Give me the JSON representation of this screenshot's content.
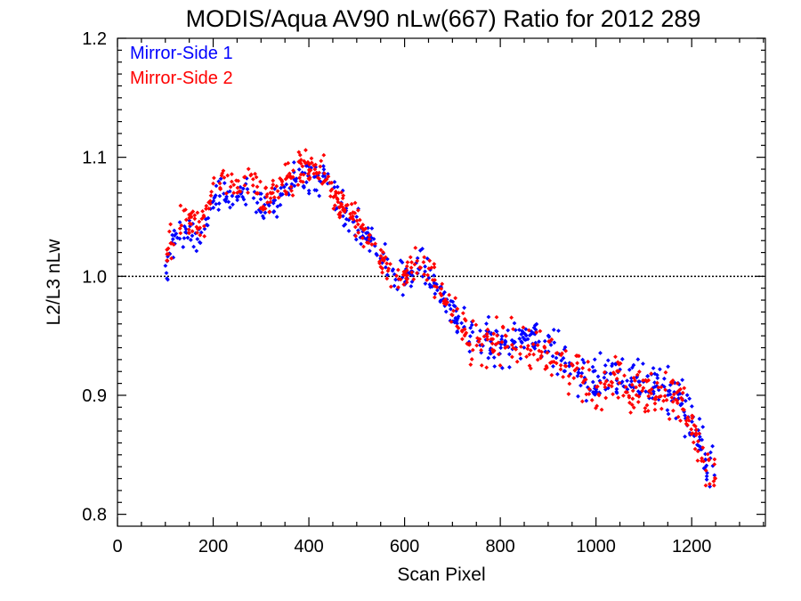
{
  "chart_data": {
    "type": "scatter",
    "title": "MODIS/Aqua AV90 nLw(667) Ratio for 2012 289",
    "xlabel": "Scan Pixel",
    "ylabel": "L2/L3 nLw",
    "xlim": [
      0,
      1354
    ],
    "ylim": [
      0.79,
      1.2
    ],
    "xticks": [
      "0",
      "200",
      "400",
      "600",
      "800",
      "1000",
      "1200"
    ],
    "xtick_values": [
      0,
      200,
      400,
      600,
      800,
      1000,
      1200
    ],
    "yticks": [
      "0.8",
      "0.9",
      "1.0",
      "1.1",
      "1.2"
    ],
    "ytick_values": [
      0.8,
      0.9,
      1.0,
      1.1,
      1.2
    ],
    "reference_line": {
      "y": 1.0,
      "style": "dotted"
    },
    "grid": false,
    "legend_position": "top-left",
    "series": [
      {
        "name": "Mirror-Side 1",
        "color": "#0000ff",
        "trend": [
          [
            100,
            1.005
          ],
          [
            120,
            1.03
          ],
          [
            140,
            1.04
          ],
          [
            160,
            1.035
          ],
          [
            180,
            1.04
          ],
          [
            200,
            1.06
          ],
          [
            220,
            1.07
          ],
          [
            250,
            1.065
          ],
          [
            280,
            1.07
          ],
          [
            300,
            1.058
          ],
          [
            320,
            1.055
          ],
          [
            350,
            1.07
          ],
          [
            380,
            1.085
          ],
          [
            400,
            1.085
          ],
          [
            420,
            1.082
          ],
          [
            440,
            1.075
          ],
          [
            460,
            1.065
          ],
          [
            480,
            1.05
          ],
          [
            500,
            1.04
          ],
          [
            520,
            1.035
          ],
          [
            540,
            1.025
          ],
          [
            560,
            1.01
          ],
          [
            580,
            0.995
          ],
          [
            600,
            0.998
          ],
          [
            620,
            1.005
          ],
          [
            640,
            1.008
          ],
          [
            660,
            0.995
          ],
          [
            680,
            0.98
          ],
          [
            700,
            0.97
          ],
          [
            720,
            0.958
          ],
          [
            740,
            0.95
          ],
          [
            760,
            0.945
          ],
          [
            780,
            0.945
          ],
          [
            800,
            0.945
          ],
          [
            840,
            0.945
          ],
          [
            880,
            0.945
          ],
          [
            920,
            0.935
          ],
          [
            960,
            0.925
          ],
          [
            1000,
            0.91
          ],
          [
            1040,
            0.92
          ],
          [
            1080,
            0.915
          ],
          [
            1100,
            0.915
          ],
          [
            1140,
            0.91
          ],
          [
            1160,
            0.905
          ],
          [
            1180,
            0.895
          ],
          [
            1200,
            0.88
          ],
          [
            1220,
            0.855
          ],
          [
            1235,
            0.835
          ],
          [
            1250,
            0.845
          ]
        ],
        "spread": 0.011,
        "n_points": 600
      },
      {
        "name": "Mirror-Side 2",
        "color": "#ff0000",
        "trend": [
          [
            100,
            1.015
          ],
          [
            120,
            1.04
          ],
          [
            140,
            1.045
          ],
          [
            160,
            1.045
          ],
          [
            180,
            1.045
          ],
          [
            200,
            1.075
          ],
          [
            220,
            1.085
          ],
          [
            250,
            1.075
          ],
          [
            280,
            1.08
          ],
          [
            300,
            1.065
          ],
          [
            320,
            1.065
          ],
          [
            350,
            1.08
          ],
          [
            380,
            1.09
          ],
          [
            400,
            1.092
          ],
          [
            420,
            1.088
          ],
          [
            440,
            1.078
          ],
          [
            460,
            1.065
          ],
          [
            480,
            1.055
          ],
          [
            500,
            1.045
          ],
          [
            520,
            1.035
          ],
          [
            540,
            1.025
          ],
          [
            560,
            1.01
          ],
          [
            580,
            0.995
          ],
          [
            600,
            1.0
          ],
          [
            620,
            1.01
          ],
          [
            640,
            1.01
          ],
          [
            660,
            1.0
          ],
          [
            680,
            0.985
          ],
          [
            700,
            0.97
          ],
          [
            720,
            0.955
          ],
          [
            740,
            0.945
          ],
          [
            760,
            0.94
          ],
          [
            780,
            0.945
          ],
          [
            800,
            0.945
          ],
          [
            840,
            0.945
          ],
          [
            880,
            0.94
          ],
          [
            920,
            0.93
          ],
          [
            960,
            0.92
          ],
          [
            1000,
            0.905
          ],
          [
            1040,
            0.915
          ],
          [
            1080,
            0.905
          ],
          [
            1100,
            0.905
          ],
          [
            1140,
            0.9
          ],
          [
            1160,
            0.9
          ],
          [
            1180,
            0.895
          ],
          [
            1200,
            0.875
          ],
          [
            1220,
            0.85
          ],
          [
            1235,
            0.83
          ],
          [
            1250,
            0.84
          ]
        ],
        "spread": 0.011,
        "n_points": 600
      }
    ]
  }
}
